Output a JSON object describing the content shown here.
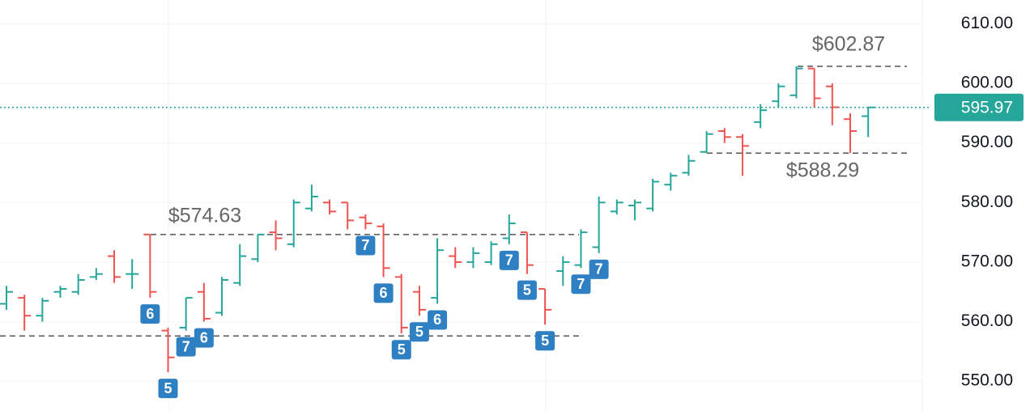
{
  "chart_data": {
    "type": "ohlc",
    "up_color": "#26a69a",
    "down_color": "#ef5350",
    "marker_color": "#2f80c3",
    "grid": true,
    "open": [
      563,
      564,
      561,
      565,
      565,
      567.5,
      571,
      568,
      574.63,
      558.5,
      559,
      565,
      561.5,
      566.5,
      570.5,
      575,
      573,
      579,
      580,
      580,
      577.5,
      576,
      567.5,
      565,
      564,
      571,
      570,
      570,
      574,
      575,
      565.5,
      568.5,
      569.5,
      572.5,
      578.5,
      579.5,
      579,
      583,
      585,
      588.5,
      592,
      591,
      593.5,
      597,
      598,
      602.5,
      599.5,
      594,
      594.5
    ],
    "high": [
      566,
      564.5,
      564,
      566,
      568,
      569,
      572,
      570.5,
      574.63,
      559,
      564,
      566.5,
      567.5,
      573,
      574.63,
      577,
      580.5,
      583,
      580.5,
      580,
      578,
      576.5,
      568,
      566,
      574,
      572.5,
      572.5,
      573.5,
      578,
      575,
      565.5,
      571,
      575.5,
      581,
      580.5,
      580.5,
      584,
      585,
      588,
      592,
      592.5,
      591.5,
      596.5,
      600,
      602.87,
      602.5,
      600,
      595,
      596
    ],
    "low": [
      562,
      558.5,
      560,
      564,
      564.5,
      567,
      566.5,
      565.5,
      564,
      551.5,
      558.5,
      560,
      561,
      566,
      570,
      572,
      572.5,
      578.5,
      578,
      575.5,
      575.5,
      567.5,
      558,
      561,
      563,
      569,
      569,
      569.5,
      573,
      568,
      559.5,
      566,
      569,
      571.5,
      578,
      577,
      578.5,
      582,
      584.5,
      588.29,
      590,
      584.5,
      592.5,
      596,
      597.5,
      596,
      593,
      588.29,
      591
    ],
    "close": [
      565,
      561,
      563.5,
      565.5,
      567,
      568,
      567.5,
      568,
      565,
      554,
      564,
      560.5,
      567,
      571,
      574.63,
      574,
      580,
      581,
      578.5,
      577,
      576.5,
      569,
      559,
      562,
      572,
      570,
      571.5,
      573,
      576.5,
      569.5,
      562,
      570,
      575,
      580,
      580,
      580,
      583.5,
      584.5,
      587,
      591.5,
      591,
      589.5,
      595.5,
      599.5,
      602.5,
      597.5,
      596,
      592,
      595.97
    ],
    "markers": [
      null,
      null,
      null,
      null,
      null,
      null,
      null,
      null,
      "6",
      "5",
      "7",
      "6",
      null,
      null,
      null,
      null,
      null,
      null,
      null,
      null,
      "7",
      "6",
      "5",
      "5",
      "6",
      null,
      null,
      null,
      "7",
      "5",
      "5",
      null,
      "7",
      "7",
      null,
      null,
      null,
      null,
      null,
      null,
      null,
      null,
      null,
      null,
      null,
      null,
      null,
      null,
      null
    ],
    "levels": [
      {
        "value": 602.87,
        "label": "$602.87"
      },
      {
        "value": 588.29,
        "label": "$588.29"
      },
      {
        "value": 574.63,
        "label": "$574.63"
      },
      557.6
    ],
    "last_price": 595.97,
    "ylim": [
      545,
      614
    ],
    "yticks": [
      {
        "value": 550,
        "label": "550.00"
      },
      {
        "value": 560,
        "label": "560.00"
      },
      {
        "value": 570,
        "label": "570.00"
      },
      {
        "value": 580,
        "label": "580.00"
      },
      {
        "value": 590,
        "label": "590.00"
      },
      {
        "value": 600,
        "label": "600.00"
      },
      {
        "value": 610,
        "label": "610.00"
      }
    ]
  }
}
